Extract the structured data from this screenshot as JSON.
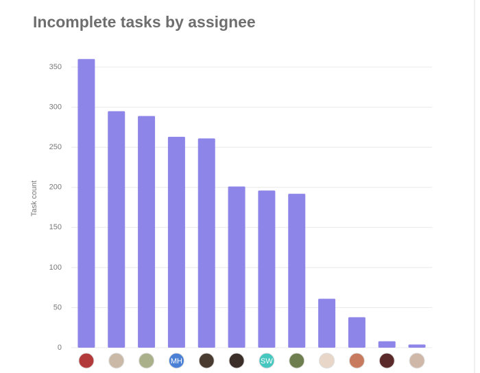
{
  "chart_data": {
    "type": "bar",
    "title": "Incomplete tasks by assignee",
    "y_label": "Task count",
    "categories": [
      null,
      null,
      null,
      "MH",
      null,
      null,
      "SW",
      null,
      null,
      null,
      null,
      null
    ],
    "values": [
      360,
      295,
      289,
      263,
      261,
      201,
      196,
      192,
      61,
      38,
      8,
      4
    ],
    "color": "#8e85e8",
    "ylim": [
      0,
      360
    ],
    "yticks": [
      0,
      50,
      100,
      150,
      200,
      250,
      300,
      350
    ],
    "grid": true
  }
}
